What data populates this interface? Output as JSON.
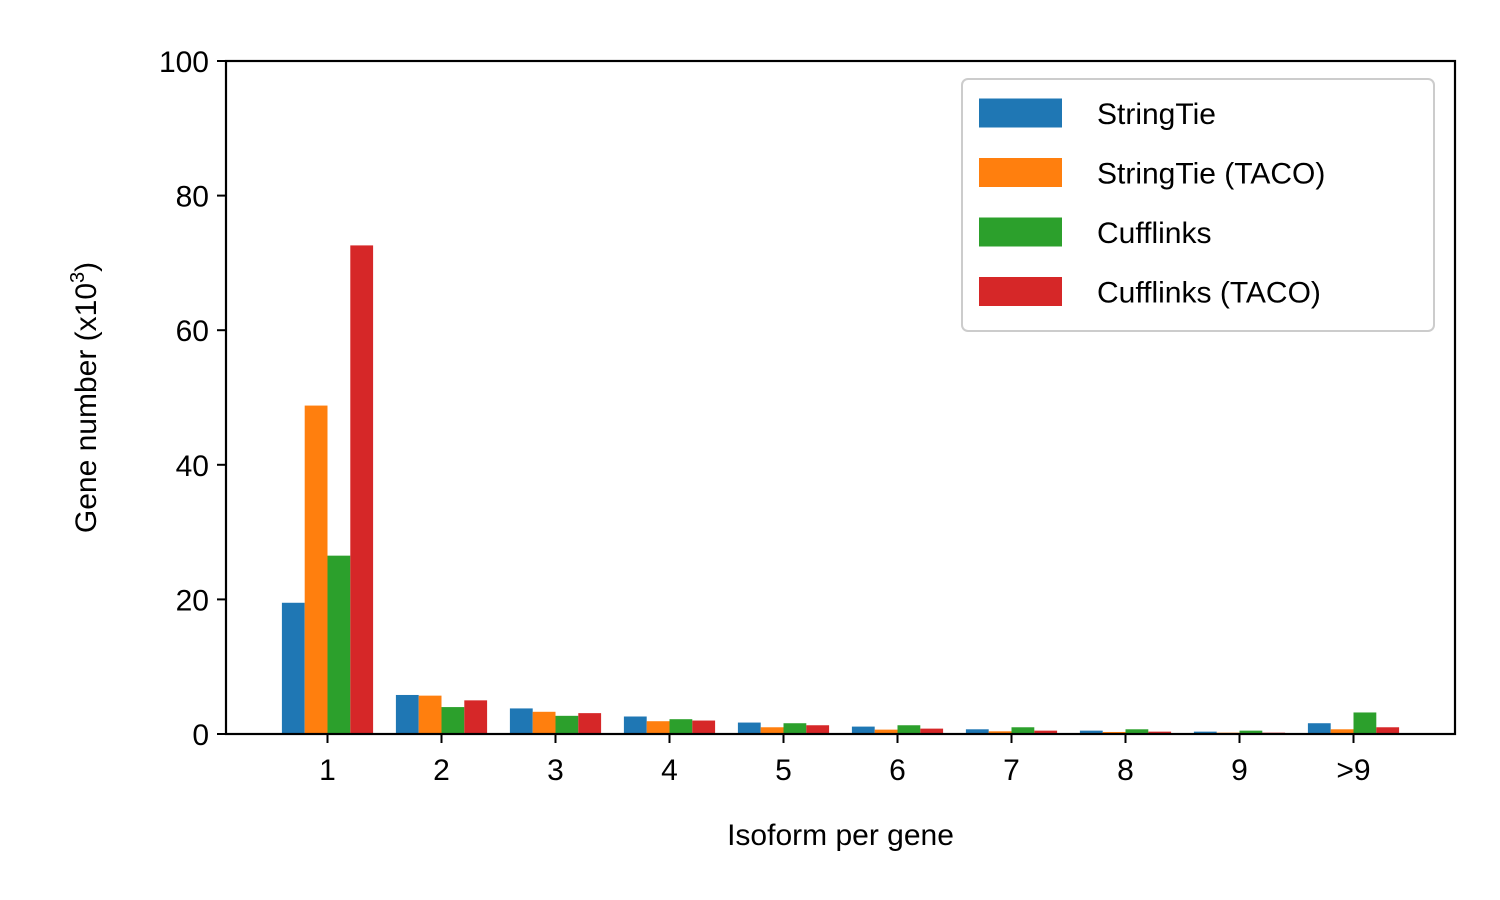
{
  "chart_data": {
    "type": "bar",
    "categories": [
      "1",
      "2",
      "3",
      "4",
      "5",
      "6",
      "7",
      "8",
      "9",
      ">9"
    ],
    "series": [
      {
        "name": "StringTie",
        "color": "#1f77b4",
        "values": [
          19.5,
          5.8,
          3.8,
          2.6,
          1.7,
          1.1,
          0.7,
          0.5,
          0.35,
          1.6
        ]
      },
      {
        "name": "StringTie (TACO)",
        "color": "#ff7f0e",
        "values": [
          48.8,
          5.7,
          3.3,
          1.9,
          1.0,
          0.65,
          0.4,
          0.3,
          0.2,
          0.7
        ]
      },
      {
        "name": "Cufflinks",
        "color": "#2ca02c",
        "values": [
          26.5,
          4.0,
          2.7,
          2.2,
          1.6,
          1.3,
          1.0,
          0.7,
          0.5,
          3.2
        ]
      },
      {
        "name": "Cufflinks (TACO)",
        "color": "#d62728",
        "values": [
          72.6,
          5.0,
          3.1,
          2.0,
          1.3,
          0.8,
          0.5,
          0.35,
          0.2,
          1.0
        ]
      }
    ],
    "xlabel": "Isoform per gene",
    "ylabel_main": "Gene number (x10",
    "ylabel_sup": "3",
    "ylabel_end": ")",
    "ylim": [
      0,
      100
    ],
    "yticks": [
      0,
      20,
      40,
      60,
      80,
      100
    ],
    "grid": false,
    "legend_position": "top-right"
  }
}
